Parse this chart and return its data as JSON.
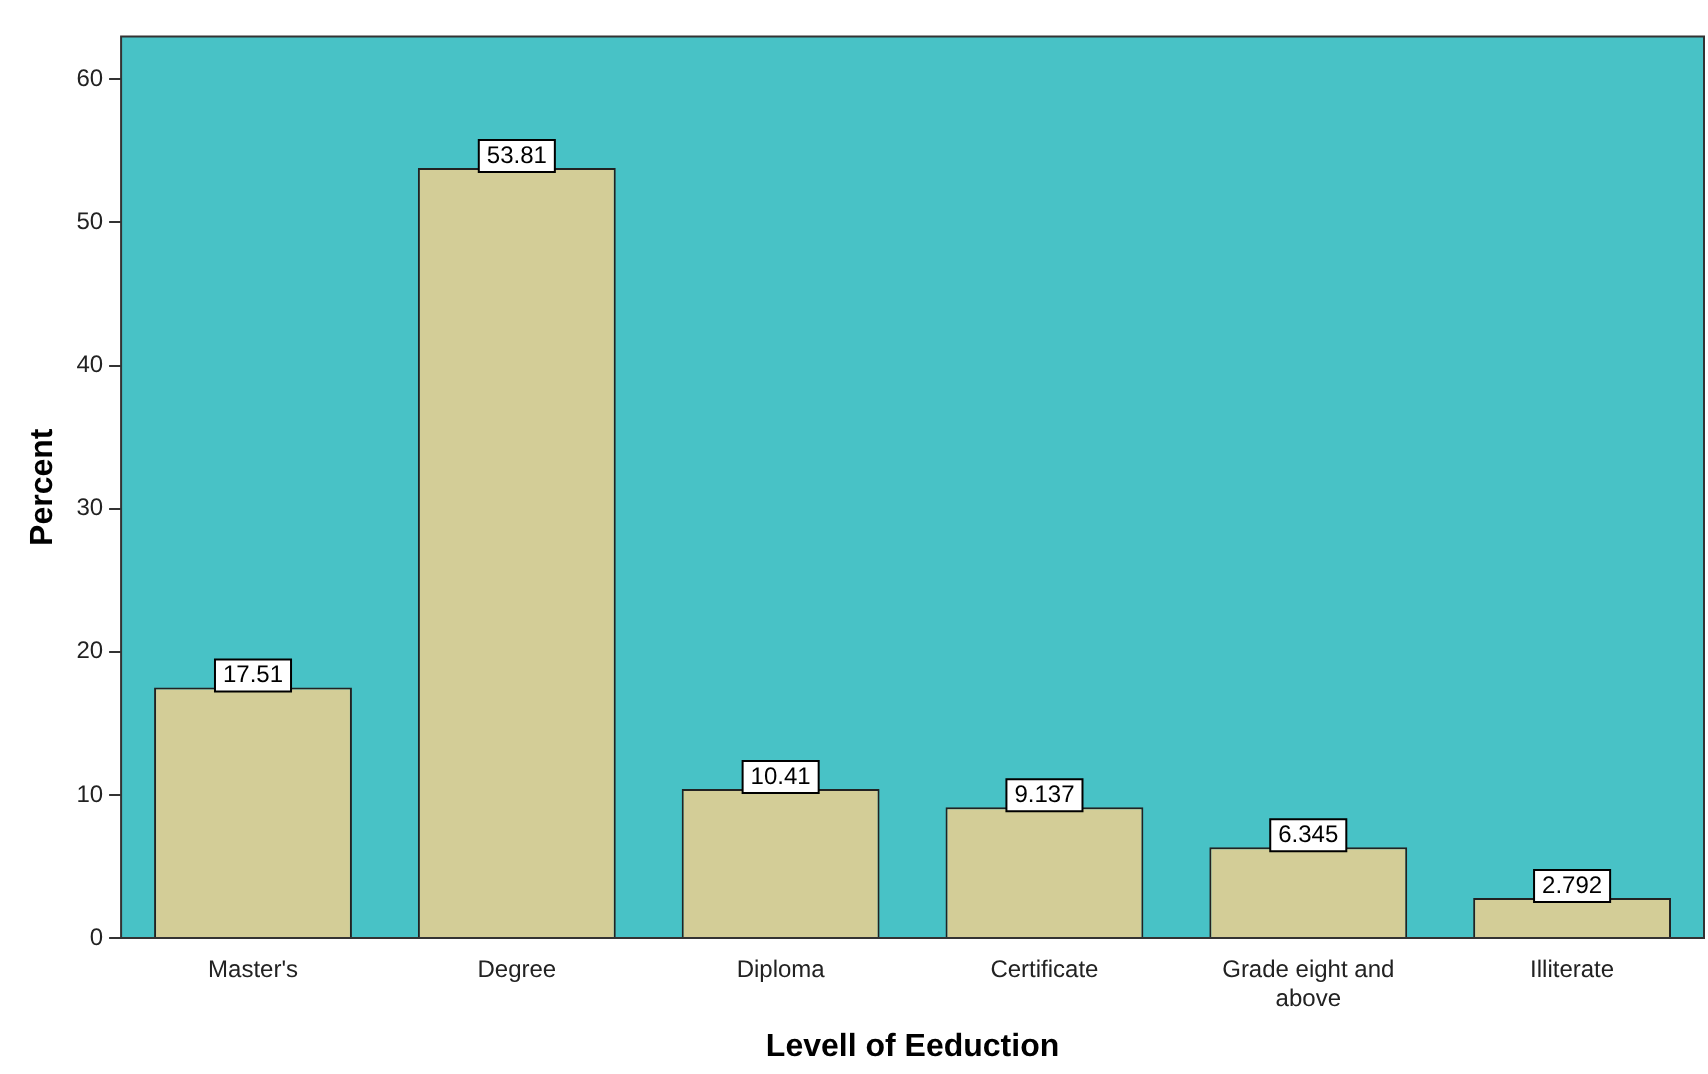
{
  "chart_data": {
    "type": "bar",
    "xlabel": "Levell of Eeduction",
    "ylabel": "Percent",
    "categories": [
      "Master's",
      "Degree",
      "Diploma",
      "Certificate",
      "Grade eight and above",
      "Illiterate"
    ],
    "values": [
      17.51,
      53.81,
      10.41,
      9.137,
      6.345,
      2.792
    ],
    "color": "#d3cd97",
    "ylim": [
      0,
      63
    ],
    "yticks": [
      0,
      10,
      20,
      30,
      40,
      50,
      60
    ],
    "grid": false,
    "legend": false,
    "data_labels": true
  }
}
